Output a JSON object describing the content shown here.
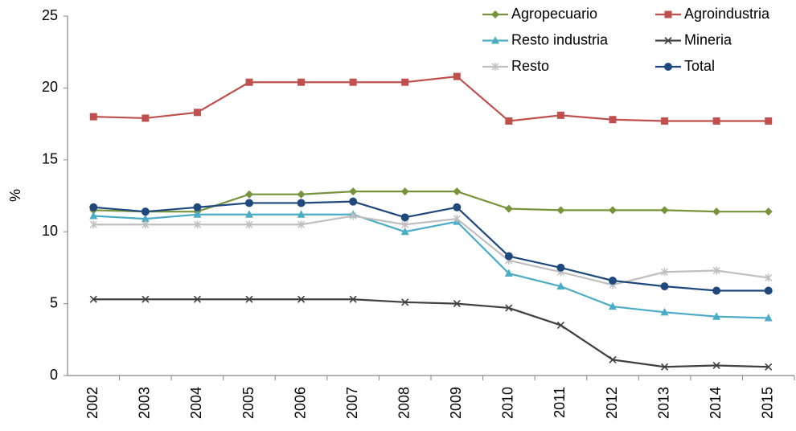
{
  "chart_data": {
    "type": "line",
    "ylabel": "%",
    "categories": [
      "2002",
      "2003",
      "2004",
      "2005",
      "2006",
      "2007",
      "2008",
      "2009",
      "2010",
      "2011",
      "2012",
      "2013",
      "2014",
      "2015"
    ],
    "ylim": [
      0,
      25
    ],
    "yticks": [
      0,
      5,
      10,
      15,
      20,
      25
    ],
    "grid": false,
    "legend": "top-right",
    "series": [
      {
        "name": "Agropecuario",
        "color": "#77933c",
        "marker": "diamond",
        "values": [
          11.5,
          11.4,
          11.4,
          12.6,
          12.6,
          12.8,
          12.8,
          12.8,
          11.6,
          11.5,
          11.5,
          11.5,
          11.4,
          11.4
        ]
      },
      {
        "name": "Agroindustria",
        "color": "#c0504d",
        "marker": "square",
        "values": [
          18.0,
          17.9,
          18.3,
          20.4,
          20.4,
          20.4,
          20.4,
          20.8,
          17.7,
          18.1,
          17.8,
          17.7,
          17.7,
          17.7
        ]
      },
      {
        "name": "Resto industria",
        "color": "#4bacc6",
        "marker": "triangle",
        "values": [
          11.1,
          10.9,
          11.2,
          11.2,
          11.2,
          11.2,
          10.0,
          10.7,
          7.1,
          6.2,
          4.8,
          4.4,
          4.1,
          4.0
        ]
      },
      {
        "name": "Mineria",
        "color": "#404040",
        "marker": "x",
        "values": [
          5.3,
          5.3,
          5.3,
          5.3,
          5.3,
          5.3,
          5.1,
          5.0,
          4.7,
          3.5,
          1.1,
          0.6,
          0.7,
          0.6
        ]
      },
      {
        "name": "Resto",
        "color": "#bfbfbf",
        "marker": "star",
        "values": [
          10.5,
          10.5,
          10.5,
          10.5,
          10.5,
          11.1,
          10.5,
          10.9,
          8.0,
          7.2,
          6.3,
          7.2,
          7.3,
          6.8
        ]
      },
      {
        "name": "Total",
        "color": "#1f497d",
        "marker": "circle",
        "values": [
          11.7,
          11.4,
          11.7,
          12.0,
          12.0,
          12.1,
          11.0,
          11.7,
          8.3,
          7.5,
          6.6,
          6.2,
          5.9,
          5.9
        ]
      }
    ]
  }
}
